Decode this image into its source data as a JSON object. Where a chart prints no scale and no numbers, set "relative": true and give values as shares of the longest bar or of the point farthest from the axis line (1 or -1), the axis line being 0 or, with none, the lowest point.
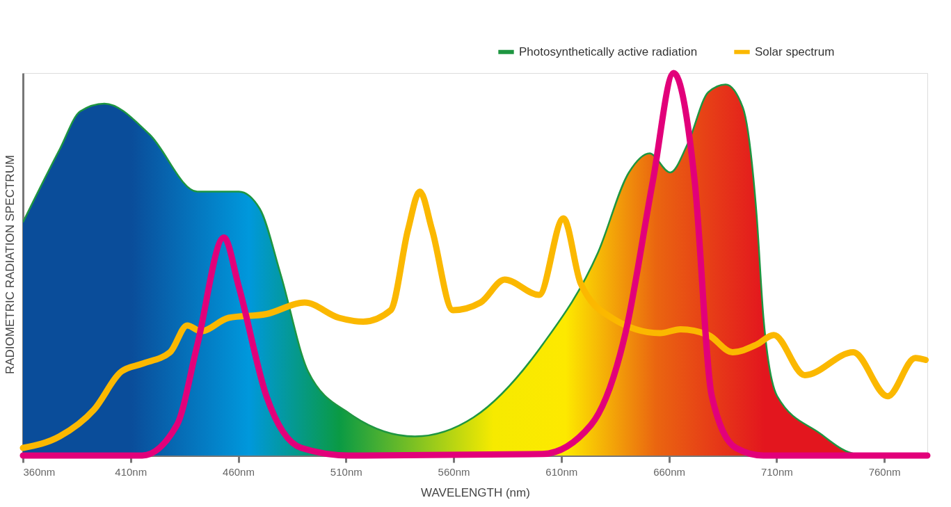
{
  "chart_data": {
    "type": "line",
    "relative": true,
    "xlabel": "WAVELENGTH  (nm)",
    "ylabel": "RADIOMETRIC RADIATION SPECTRUM",
    "xlim": [
      360,
      780
    ],
    "xticks": [
      {
        "value": 360,
        "label": "360nm"
      },
      {
        "value": 410,
        "label": "410nm"
      },
      {
        "value": 460,
        "label": "460nm"
      },
      {
        "value": 510,
        "label": "510nm"
      },
      {
        "value": 560,
        "label": "560nm"
      },
      {
        "value": 610,
        "label": "610nm"
      },
      {
        "value": 660,
        "label": "660nm"
      },
      {
        "value": 710,
        "label": "710nm"
      },
      {
        "value": 760,
        "label": "760nm"
      }
    ],
    "legend": "top right",
    "grid": false,
    "series": [
      {
        "name": "Photosynthetically active radiation",
        "type": "area",
        "color": "#1e9641",
        "x": [
          360,
          377,
          386.6,
          397.8,
          418.7,
          441,
          460.3,
          470,
          479.6,
          492.4,
          511.6,
          542,
          569.3,
          601.3,
          627,
          641.4,
          651,
          660.6,
          668.7,
          678.3,
          686.3,
          694.3,
          700.7,
          703.9,
          710.3,
          729.6,
          747.2,
          780
        ],
        "values": [
          0.61,
          0.8,
          0.9,
          0.92,
          0.84,
          0.69,
          0.69,
          0.645,
          0.475,
          0.22,
          0.11,
          0.05,
          0.1,
          0.29,
          0.53,
          0.74,
          0.79,
          0.74,
          0.815,
          0.95,
          0.97,
          0.91,
          0.63,
          0.36,
          0.155,
          0.06,
          0.004,
          0
        ]
      },
      {
        "name": "Solar spectrum",
        "color": "#fbb800",
        "x": [
          360,
          377,
          393,
          405.8,
          415.4,
          428.3,
          436.3,
          442.7,
          455.5,
          473.1,
          490.8,
          506.8,
          518,
          530.8,
          538.8,
          544.3,
          550,
          559.7,
          572.5,
          583.7,
          599.7,
          611,
          619,
          633.4,
          655.8,
          665.4,
          678.3,
          689.5,
          700.7,
          708.7,
          723.1,
          745.6,
          761.6,
          774.4,
          779.2
        ],
        "values": [
          0.02,
          0.05,
          0.12,
          0.22,
          0.24,
          0.27,
          0.34,
          0.325,
          0.36,
          0.37,
          0.4,
          0.36,
          0.35,
          0.38,
          0.59,
          0.69,
          0.59,
          0.38,
          0.4,
          0.46,
          0.42,
          0.62,
          0.45,
          0.36,
          0.32,
          0.33,
          0.315,
          0.27,
          0.29,
          0.315,
          0.21,
          0.27,
          0.155,
          0.255,
          0.25
        ]
      },
      {
        "color": "#e2007a",
        "x": [
          360,
          415.4,
          431.5,
          441,
          453.3,
          460.3,
          473.1,
          489.2,
          511.6,
          601.3,
          623.8,
          639.8,
          652.6,
          662.2,
          671.9,
          679.9,
          691.1,
          703.9,
          780
        ],
        "values": [
          0,
          0,
          0.08,
          0.29,
          0.57,
          0.44,
          0.155,
          0.02,
          0,
          0.004,
          0.08,
          0.32,
          0.72,
          1.0,
          0.72,
          0.155,
          0.02,
          0,
          0
        ]
      }
    ]
  }
}
